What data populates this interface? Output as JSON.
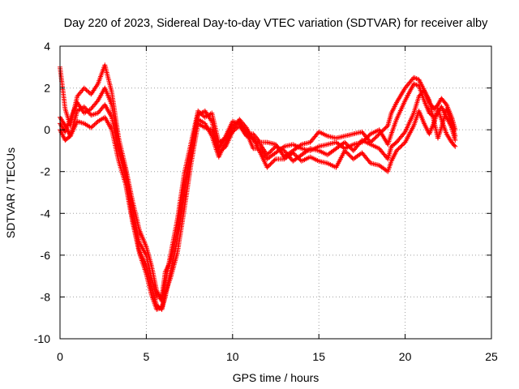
{
  "chart_data": {
    "type": "scatter",
    "title": "Day 220 of 2023, Sidereal Day-to-day VTEC variation (SDTVAR) for receiver alby",
    "xlabel": "GPS time / hours",
    "ylabel": "SDTVAR / TECUs",
    "xlim": [
      0,
      25
    ],
    "ylim": [
      -10,
      4
    ],
    "xticks": [
      0,
      5,
      10,
      15,
      20,
      25
    ],
    "yticks": [
      4,
      2,
      0,
      -2,
      -4,
      -6,
      -8,
      -10
    ],
    "grid": true,
    "marker": "+",
    "series": [
      {
        "name": "SDTVAR",
        "color": "#ff0000",
        "tracks": [
          [
            [
              0.0,
              0.6
            ],
            [
              0.3,
              0.2
            ],
            [
              0.6,
              -0.3
            ],
            [
              1.0,
              0.9
            ],
            [
              1.4,
              1.1
            ],
            [
              1.8,
              0.7
            ],
            [
              2.2,
              0.8
            ],
            [
              2.6,
              1.2
            ],
            [
              3.0,
              0.6
            ],
            [
              3.4,
              -1.0
            ],
            [
              3.8,
              -2.3
            ],
            [
              4.2,
              -4.2
            ],
            [
              4.6,
              -5.8
            ],
            [
              5.0,
              -6.5
            ],
            [
              5.3,
              -7.5
            ],
            [
              5.6,
              -8.4
            ],
            [
              5.9,
              -8.6
            ],
            [
              6.1,
              -8.0
            ],
            [
              6.4,
              -6.8
            ],
            [
              6.8,
              -5.3
            ],
            [
              7.2,
              -3.0
            ],
            [
              7.6,
              -1.1
            ],
            [
              8.0,
              0.5
            ],
            [
              8.4,
              0.3
            ],
            [
              8.8,
              -0.3
            ],
            [
              9.2,
              -1.3
            ],
            [
              9.6,
              -0.6
            ],
            [
              10.0,
              0.0
            ],
            [
              10.4,
              0.5
            ],
            [
              10.8,
              0.1
            ],
            [
              11.2,
              -0.5
            ],
            [
              11.6,
              -0.7
            ],
            [
              12.0,
              -1.2
            ],
            [
              12.5,
              -0.8
            ],
            [
              13.0,
              -1.0
            ],
            [
              13.5,
              -1.5
            ],
            [
              14.0,
              -1.2
            ],
            [
              14.5,
              -0.9
            ],
            [
              15.0,
              -1.0
            ],
            [
              15.5,
              -1.2
            ],
            [
              16.0,
              -0.9
            ],
            [
              16.5,
              -0.6
            ],
            [
              17.0,
              -1.0
            ],
            [
              17.5,
              -0.5
            ],
            [
              18.0,
              -0.7
            ],
            [
              18.5,
              -0.9
            ],
            [
              19.0,
              -1.4
            ],
            [
              19.2,
              -0.8
            ],
            [
              19.5,
              -0.6
            ],
            [
              20.0,
              -0.1
            ],
            [
              20.5,
              0.8
            ],
            [
              20.8,
              1.6
            ],
            [
              21.1,
              1.9
            ],
            [
              21.4,
              1.4
            ],
            [
              21.7,
              0.3
            ],
            [
              21.9,
              -0.4
            ],
            [
              22.1,
              0.1
            ],
            [
              22.4,
              1.0
            ],
            [
              22.7,
              0.3
            ],
            [
              22.9,
              -0.3
            ]
          ],
          [
            [
              0.0,
              3.0
            ],
            [
              0.3,
              1.0
            ],
            [
              0.6,
              0.2
            ],
            [
              1.0,
              1.6
            ],
            [
              1.4,
              2.0
            ],
            [
              1.8,
              1.7
            ],
            [
              2.2,
              2.2
            ],
            [
              2.6,
              3.1
            ],
            [
              3.0,
              1.8
            ],
            [
              3.4,
              -0.4
            ],
            [
              3.8,
              -1.8
            ],
            [
              4.2,
              -3.4
            ],
            [
              4.6,
              -4.8
            ],
            [
              5.0,
              -5.6
            ],
            [
              5.3,
              -6.5
            ],
            [
              5.6,
              -7.7
            ],
            [
              5.9,
              -8.2
            ],
            [
              6.1,
              -7.3
            ],
            [
              6.4,
              -6.0
            ],
            [
              6.8,
              -4.3
            ],
            [
              7.2,
              -2.1
            ],
            [
              7.6,
              -0.6
            ],
            [
              8.0,
              0.9
            ],
            [
              8.4,
              0.6
            ],
            [
              8.8,
              0.8
            ],
            [
              9.2,
              -0.6
            ],
            [
              9.6,
              -0.4
            ],
            [
              10.0,
              0.2
            ],
            [
              10.4,
              0.4
            ],
            [
              10.8,
              -0.2
            ],
            [
              11.2,
              -0.2
            ],
            [
              11.6,
              -0.6
            ],
            [
              12.0,
              -0.6
            ],
            [
              12.5,
              -0.7
            ],
            [
              13.0,
              -1.3
            ],
            [
              13.5,
              -1.0
            ],
            [
              14.0,
              -0.7
            ],
            [
              14.5,
              -0.6
            ],
            [
              15.0,
              -0.1
            ],
            [
              15.5,
              -0.3
            ],
            [
              16.0,
              -0.4
            ],
            [
              16.5,
              -0.3
            ],
            [
              17.0,
              -0.2
            ],
            [
              17.5,
              -0.1
            ],
            [
              18.0,
              -0.6
            ],
            [
              18.5,
              -0.2
            ],
            [
              19.0,
              0.2
            ],
            [
              19.2,
              0.8
            ],
            [
              19.5,
              1.3
            ],
            [
              20.0,
              2.0
            ],
            [
              20.5,
              2.5
            ],
            [
              20.8,
              2.4
            ],
            [
              21.1,
              1.9
            ],
            [
              21.4,
              1.3
            ],
            [
              21.7,
              1.0
            ],
            [
              21.9,
              1.2
            ],
            [
              22.1,
              1.5
            ],
            [
              22.4,
              1.2
            ],
            [
              22.7,
              0.6
            ],
            [
              22.9,
              0.0
            ]
          ],
          [
            [
              0.0,
              0.0
            ],
            [
              0.3,
              -0.5
            ],
            [
              0.6,
              -0.3
            ],
            [
              1.0,
              0.4
            ],
            [
              1.4,
              0.3
            ],
            [
              1.8,
              0.1
            ],
            [
              2.2,
              0.4
            ],
            [
              2.6,
              0.6
            ],
            [
              3.0,
              0.0
            ],
            [
              3.4,
              -1.5
            ],
            [
              3.8,
              -2.6
            ],
            [
              4.2,
              -4.4
            ],
            [
              4.6,
              -5.9
            ],
            [
              5.0,
              -6.9
            ],
            [
              5.3,
              -7.9
            ],
            [
              5.6,
              -8.6
            ],
            [
              5.9,
              -8.5
            ],
            [
              6.1,
              -7.8
            ],
            [
              6.4,
              -7.1
            ],
            [
              6.8,
              -5.9
            ],
            [
              7.2,
              -3.8
            ],
            [
              7.6,
              -1.6
            ],
            [
              8.0,
              0.3
            ],
            [
              8.4,
              0.1
            ],
            [
              8.8,
              0.0
            ],
            [
              9.2,
              -1.1
            ],
            [
              9.6,
              -0.8
            ],
            [
              10.0,
              -0.1
            ],
            [
              10.4,
              0.2
            ],
            [
              10.8,
              -0.3
            ],
            [
              11.2,
              -0.4
            ],
            [
              11.6,
              -1.1
            ],
            [
              12.0,
              -1.8
            ],
            [
              12.5,
              -1.4
            ],
            [
              13.0,
              -1.4
            ],
            [
              13.5,
              -1.1
            ],
            [
              14.0,
              -1.5
            ],
            [
              14.5,
              -1.3
            ],
            [
              15.0,
              -1.5
            ],
            [
              15.5,
              -1.6
            ],
            [
              16.0,
              -1.8
            ],
            [
              16.5,
              -1.0
            ],
            [
              17.0,
              -1.4
            ],
            [
              17.5,
              -1.1
            ],
            [
              18.0,
              -1.6
            ],
            [
              18.5,
              -1.7
            ],
            [
              19.0,
              -2.0
            ],
            [
              19.2,
              -1.5
            ],
            [
              19.5,
              -1.0
            ],
            [
              20.0,
              -0.6
            ],
            [
              20.5,
              0.2
            ],
            [
              20.8,
              0.9
            ],
            [
              21.1,
              0.3
            ],
            [
              21.4,
              -0.2
            ],
            [
              21.7,
              0.4
            ],
            [
              21.9,
              1.0
            ],
            [
              22.1,
              0.5
            ],
            [
              22.4,
              -0.2
            ],
            [
              22.7,
              -0.6
            ],
            [
              22.9,
              -0.8
            ]
          ],
          [
            [
              0.0,
              0.3
            ],
            [
              0.3,
              -0.1
            ],
            [
              0.6,
              0.5
            ],
            [
              1.0,
              1.3
            ],
            [
              1.4,
              0.8
            ],
            [
              1.8,
              1.0
            ],
            [
              2.2,
              1.4
            ],
            [
              2.6,
              2.0
            ],
            [
              3.0,
              1.2
            ],
            [
              3.4,
              -0.8
            ],
            [
              3.8,
              -2.0
            ],
            [
              4.2,
              -3.8
            ],
            [
              4.6,
              -5.4
            ],
            [
              5.0,
              -6.0
            ],
            [
              5.3,
              -7.1
            ],
            [
              5.6,
              -8.0
            ],
            [
              5.9,
              -8.0
            ],
            [
              6.1,
              -6.8
            ],
            [
              6.4,
              -6.3
            ],
            [
              6.8,
              -4.8
            ],
            [
              7.2,
              -2.6
            ],
            [
              7.6,
              -0.9
            ],
            [
              8.0,
              0.7
            ],
            [
              8.4,
              0.9
            ],
            [
              8.8,
              0.4
            ],
            [
              9.2,
              -0.9
            ],
            [
              9.6,
              -0.3
            ],
            [
              10.0,
              0.4
            ],
            [
              10.4,
              0.3
            ],
            [
              10.8,
              -0.1
            ],
            [
              11.2,
              -0.9
            ],
            [
              11.6,
              -0.9
            ],
            [
              12.0,
              -1.4
            ],
            [
              12.5,
              -1.1
            ],
            [
              13.0,
              -0.8
            ],
            [
              13.5,
              -0.7
            ],
            [
              14.0,
              -0.9
            ],
            [
              14.5,
              -1.0
            ],
            [
              15.0,
              -0.8
            ],
            [
              15.5,
              -0.7
            ],
            [
              16.0,
              -0.6
            ],
            [
              16.5,
              -0.9
            ],
            [
              17.0,
              -0.7
            ],
            [
              17.5,
              -0.6
            ],
            [
              18.0,
              -0.2
            ],
            [
              18.5,
              0.0
            ],
            [
              19.0,
              -0.7
            ],
            [
              19.2,
              -0.2
            ],
            [
              19.5,
              0.5
            ],
            [
              20.0,
              1.4
            ],
            [
              20.5,
              2.2
            ],
            [
              20.8,
              2.1
            ],
            [
              21.1,
              1.4
            ],
            [
              21.4,
              0.8
            ],
            [
              21.7,
              0.6
            ],
            [
              21.9,
              0.8
            ],
            [
              22.1,
              1.1
            ],
            [
              22.4,
              0.6
            ],
            [
              22.7,
              0.1
            ],
            [
              22.9,
              -0.5
            ]
          ]
        ]
      }
    ]
  }
}
